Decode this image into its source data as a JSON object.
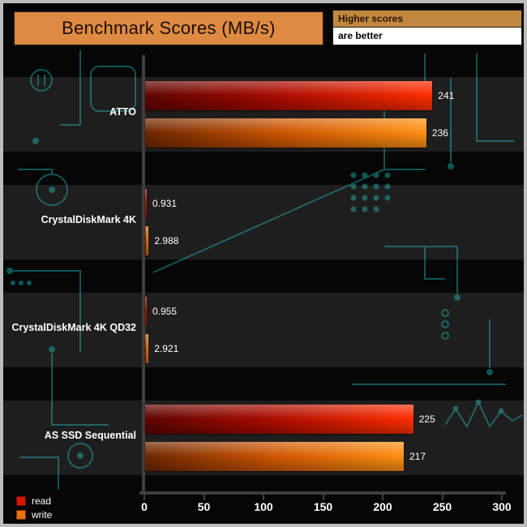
{
  "header": {
    "title": "Benchmark Scores (MB/s)",
    "note_line1": "Higher scores",
    "note_line2": "are better"
  },
  "legend": [
    {
      "label": "read",
      "color": "#d41500"
    },
    {
      "label": "write",
      "color": "#e8700e"
    }
  ],
  "colors": {
    "title_box_bg": "#de8a42",
    "note_box_bg": "#c2873f",
    "read_bar_bright": "#ff2e00",
    "read_bar_dark": "#5f0400",
    "write_bar_bright": "#ff9013",
    "write_bar_dark": "#6f2600",
    "circuit_trace": "#0e6060",
    "axis": "#3f3f3f",
    "background": "#060606"
  },
  "chart_data": {
    "type": "bar",
    "orientation": "horizontal",
    "title": "Benchmark Scores (MB/s)",
    "categories": [
      "ATTO",
      "CrystalDiskMark 4K",
      "CrystalDiskMark 4K QD32",
      "AS SSD Sequential"
    ],
    "series": [
      {
        "name": "read",
        "values": [
          241,
          0.931,
          0.955,
          225
        ]
      },
      {
        "name": "write",
        "values": [
          236,
          2.988,
          2.921,
          217
        ]
      }
    ],
    "value_labels": [
      [
        "241",
        "236"
      ],
      [
        "0.931",
        "2.988"
      ],
      [
        "0.955",
        "2.921"
      ],
      [
        "225",
        "217"
      ]
    ],
    "xlabel": "",
    "ylabel": "",
    "xlim": [
      0,
      300
    ],
    "xticks": [
      0,
      50,
      100,
      150,
      200,
      250,
      300
    ],
    "grid": false,
    "legend_position": "bottom-left"
  }
}
